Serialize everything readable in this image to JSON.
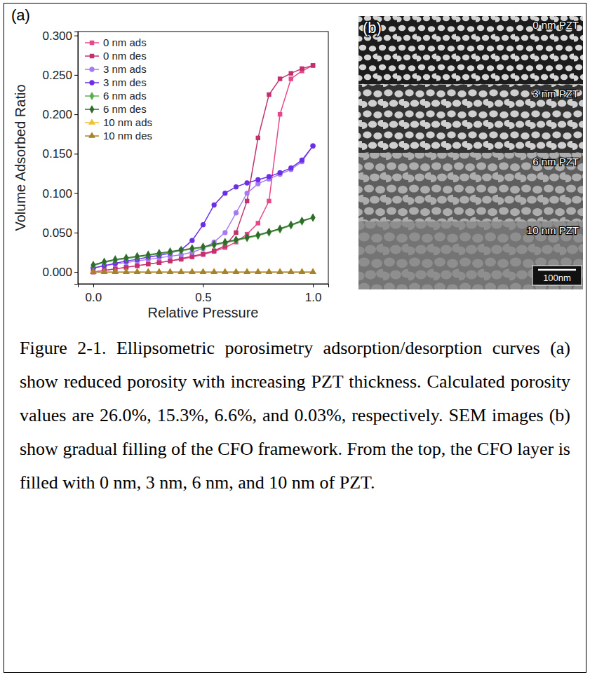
{
  "chart_data": {
    "type": "line",
    "panel_label": "(a)",
    "x_label": "Relative Pressure",
    "y_label": "Volume Adsorbed Ratio",
    "x": [
      0,
      0.05,
      0.1,
      0.15,
      0.2,
      0.25,
      0.3,
      0.35,
      0.4,
      0.45,
      0.5,
      0.55,
      0.6,
      0.65,
      0.7,
      0.75,
      0.8,
      0.85,
      0.9,
      0.95,
      1.0
    ],
    "xlim": [
      -0.07,
      1.07
    ],
    "xticks": [
      {
        "value": 0,
        "label": "0.0"
      },
      {
        "value": 0.5,
        "label": "0.5"
      },
      {
        "value": 1,
        "label": "1.0"
      }
    ],
    "ylim": [
      -0.015,
      0.305
    ],
    "yticks": [
      {
        "value": 0,
        "label": "0.000"
      },
      {
        "value": 0.05,
        "label": "0.050"
      },
      {
        "value": 0.1,
        "label": "0.100"
      },
      {
        "value": 0.15,
        "label": "0.150"
      },
      {
        "value": 0.2,
        "label": "0.200"
      },
      {
        "value": 0.25,
        "label": "0.250"
      },
      {
        "value": 0.3,
        "label": "0.300"
      }
    ],
    "grid": false,
    "legend": "upper left",
    "series": [
      {
        "name": "0 nm ads",
        "color": "#e8488a",
        "marker": "square",
        "line_style": "solid",
        "values": [
          0,
          0.002,
          0.004,
          0.006,
          0.008,
          0.01,
          0.012,
          0.014,
          0.016,
          0.019,
          0.022,
          0.026,
          0.031,
          0.038,
          0.048,
          0.062,
          0.09,
          0.2,
          0.245,
          0.255,
          0.262
        ]
      },
      {
        "name": "0 nm des",
        "color": "#c2306e",
        "marker": "square",
        "line_style": "solid",
        "values": [
          0,
          0.002,
          0.004,
          0.006,
          0.008,
          0.01,
          0.012,
          0.014,
          0.017,
          0.02,
          0.023,
          0.027,
          0.033,
          0.05,
          0.09,
          0.17,
          0.225,
          0.245,
          0.252,
          0.258,
          0.262
        ]
      },
      {
        "name": "3 nm ads",
        "color": "#a57af2",
        "marker": "circle",
        "line_style": "solid",
        "values": [
          0.005,
          0.008,
          0.01,
          0.012,
          0.014,
          0.016,
          0.018,
          0.02,
          0.022,
          0.025,
          0.03,
          0.038,
          0.05,
          0.075,
          0.1,
          0.112,
          0.118,
          0.124,
          0.13,
          0.14,
          0.16
        ]
      },
      {
        "name": "3 nm des",
        "color": "#6a2fe6",
        "marker": "circle",
        "line_style": "solid",
        "values": [
          0.005,
          0.008,
          0.011,
          0.014,
          0.016,
          0.019,
          0.021,
          0.024,
          0.028,
          0.04,
          0.06,
          0.085,
          0.1,
          0.108,
          0.113,
          0.117,
          0.121,
          0.126,
          0.132,
          0.142,
          0.16
        ]
      },
      {
        "name": "6 nm ads",
        "color": "#5cae4e",
        "marker": "diamond",
        "line_style": "solid",
        "values": [
          0.008,
          0.012,
          0.015,
          0.017,
          0.019,
          0.021,
          0.023,
          0.025,
          0.027,
          0.029,
          0.031,
          0.034,
          0.037,
          0.04,
          0.043,
          0.046,
          0.05,
          0.054,
          0.059,
          0.064,
          0.069
        ]
      },
      {
        "name": "6 nm des",
        "color": "#2f6b2a",
        "marker": "diamond",
        "line_style": "solid",
        "values": [
          0.009,
          0.013,
          0.016,
          0.018,
          0.02,
          0.022,
          0.024,
          0.026,
          0.028,
          0.03,
          0.032,
          0.035,
          0.038,
          0.041,
          0.044,
          0.047,
          0.051,
          0.055,
          0.06,
          0.065,
          0.069
        ]
      },
      {
        "name": "10 nm ads",
        "color": "#f2c12e",
        "marker": "triangle",
        "line_style": "solid",
        "values": [
          0,
          0,
          0,
          0,
          0,
          0,
          0,
          0,
          0,
          0,
          0,
          0,
          0,
          0,
          0,
          0,
          0,
          0,
          0,
          0,
          0
        ]
      },
      {
        "name": "10 nm des",
        "color": "#a8822a",
        "marker": "triangle",
        "line_style": "solid",
        "values": [
          0,
          0,
          0,
          0,
          0,
          0,
          0,
          0,
          0,
          0,
          0,
          0,
          0,
          0,
          0,
          0,
          0,
          0,
          0,
          0,
          0
        ]
      }
    ]
  },
  "image_panel": {
    "panel_label": "(b)",
    "labels": [
      "0 nm PZT",
      "3 nm PZT",
      "6 nm PZT",
      "10 nm PZT"
    ],
    "scale_bar": "100nm"
  },
  "caption": "Figure 2-1. Ellipsometric porosimetry adsorption/desorption curves (a) show reduced porosity with increasing PZT thickness. Calculated porosity values are 26.0%, 15.3%, 6.6%, and 0.03%, respectively. SEM images (b) show gradual filling of the CFO framework. From the top, the CFO layer is filled with 0 nm, 3 nm, 6 nm, and 10 nm of PZT."
}
